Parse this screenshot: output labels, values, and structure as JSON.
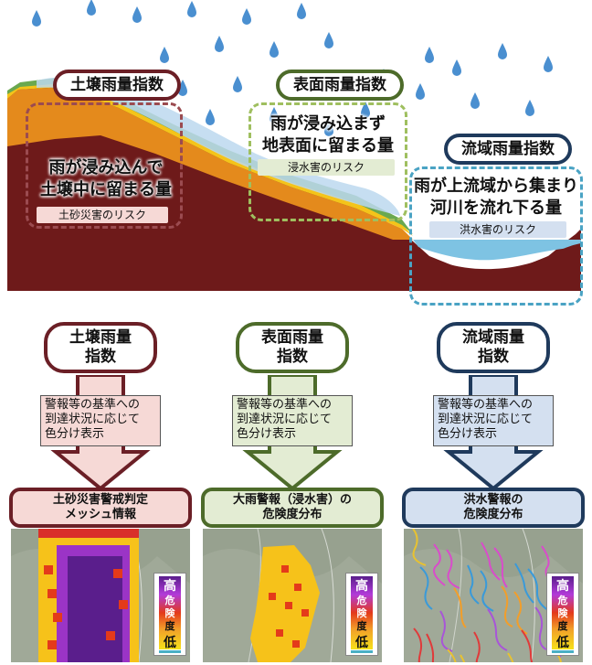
{
  "top": {
    "soil": {
      "badge": "土壌雨量指数",
      "text1": "雨が浸み込んで",
      "text2": "土壌中に留まる量",
      "risk": "土砂災害のリスク"
    },
    "surface": {
      "badge": "表面雨量指数",
      "text1": "雨が浸み込まず",
      "text2": "地表面に留まる量",
      "risk": "浸水害のリスク"
    },
    "basin": {
      "badge": "流域雨量指数",
      "text1": "雨が上流域から集まり",
      "text2": "河川を流れ下る量",
      "risk": "洪水害のリスク"
    }
  },
  "columns": [
    {
      "pill1": "土壌雨量",
      "pill2": "指数",
      "note1": "警報等の基準への",
      "note2": "到達状況に応じて",
      "note3": "色分け表示",
      "title1": "土砂災害警戒判定",
      "title2": "メッシュ情報",
      "color": "#6b1f26",
      "fill": "#f6d9d6"
    },
    {
      "pill1": "表面雨量",
      "pill2": "指数",
      "note1": "警報等の基準への",
      "note2": "到達状況に応じて",
      "note3": "色分け表示",
      "title1": "大雨警報（浸水害）の",
      "title2": "危険度分布",
      "color": "#4d6b2a",
      "fill": "#e3ecd3"
    },
    {
      "pill1": "流域雨量",
      "pill2": "指数",
      "note1": "警報等の基準への",
      "note2": "到達状況に応じて",
      "note3": "色分け表示",
      "title1": "洪水警報の",
      "title2": "危険度分布",
      "color": "#1f3a5c",
      "fill": "#d4e0f0"
    }
  ],
  "legend": {
    "high": "高",
    "mid1": "危",
    "mid2": "険",
    "mid3": "度",
    "low": "低"
  },
  "colors": {
    "soil": "#6b1f26",
    "surface": "#4d6b2a",
    "basin": "#1f3a5c",
    "rain": "#4a8fd0",
    "ground": "#6e1a1a"
  }
}
